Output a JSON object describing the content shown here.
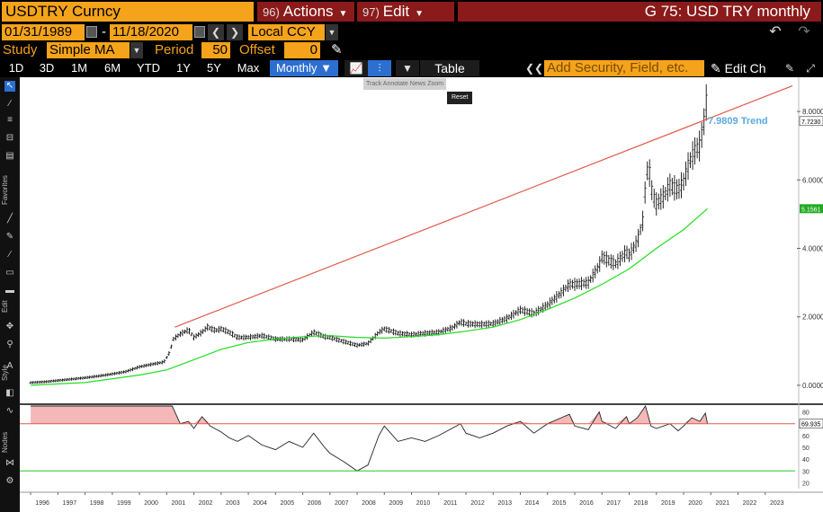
{
  "header": {
    "ticker": "USDTRY Curncy",
    "actions": {
      "num": "96)",
      "label": "Actions"
    },
    "edit": {
      "num": "97)",
      "label": "Edit"
    },
    "title": "G 75: USD TRY monthly"
  },
  "range": {
    "start": "01/31/1989",
    "separator": "-",
    "end": "11/18/2020",
    "currency": "Local CCY"
  },
  "study": {
    "label": "Study",
    "value": "Simple MA",
    "period_label": "Period",
    "period": "50",
    "offset_label": "Offset",
    "offset": "0"
  },
  "timeframes": [
    "1D",
    "3D",
    "1M",
    "6M",
    "YTD",
    "1Y",
    "5Y",
    "Max"
  ],
  "frequency": "Monthly",
  "table_label": "Table",
  "add_security_placeholder": "Add Security, Field, etc.",
  "edit_chart_label": "Edit Ch",
  "mini_toolbar": "Track  Annotate  News  Zoom",
  "reset_label": "Reset",
  "sidebar_labels": {
    "favorites": "Favorites",
    "edit": "Edit",
    "style": "Style",
    "nodes": "Nodes"
  },
  "colors": {
    "orange": "#f5a31a",
    "red_menu": "#8b1a1a",
    "trend": "#e05a4a",
    "ma": "#22dd22",
    "rsi_fill": "#f4b8b8",
    "trend_label": "#5aa9e6",
    "price_tag": "#22aa22"
  },
  "chart_data": {
    "type": "bar",
    "annotations": {
      "trend_label": "7.9809 Trend",
      "last_price": "7.7230",
      "ma_last": "5.1561",
      "rsi_last": "69.935"
    },
    "y_ticks": [
      "8.0000",
      "6.0000",
      "4.0000",
      "2.0000",
      "0.0000"
    ],
    "rsi_ticks": [
      "80",
      "70",
      "60",
      "50",
      "40",
      "30",
      "20"
    ],
    "x_ticks": [
      "1996",
      "1997",
      "1998",
      "1999",
      "2000",
      "2001",
      "2002",
      "2003",
      "2004",
      "2005",
      "2006",
      "2007",
      "2008",
      "2009",
      "2010",
      "2011",
      "2012",
      "2013",
      "2014",
      "2015",
      "2016",
      "2017",
      "2018",
      "2019",
      "2020",
      "2021",
      "2022",
      "2023"
    ],
    "ylim": [
      -0.5,
      9.0
    ],
    "rsi_ylim": [
      15,
      85
    ],
    "xlim": [
      1995.6,
      2024.1
    ],
    "price": [
      [
        1996.0,
        0.08
      ],
      [
        1996.5,
        0.1
      ],
      [
        1997.0,
        0.14
      ],
      [
        1997.5,
        0.18
      ],
      [
        1998.0,
        0.22
      ],
      [
        1998.5,
        0.27
      ],
      [
        1999.0,
        0.33
      ],
      [
        1999.5,
        0.4
      ],
      [
        2000.0,
        0.54
      ],
      [
        2000.5,
        0.62
      ],
      [
        2000.9,
        0.68
      ],
      [
        2001.1,
        0.95
      ],
      [
        2001.25,
        1.35
      ],
      [
        2001.5,
        1.5
      ],
      [
        2001.8,
        1.62
      ],
      [
        2002.0,
        1.4
      ],
      [
        2002.3,
        1.55
      ],
      [
        2002.5,
        1.7
      ],
      [
        2002.8,
        1.6
      ],
      [
        2003.0,
        1.65
      ],
      [
        2003.3,
        1.55
      ],
      [
        2003.6,
        1.4
      ],
      [
        2004.0,
        1.4
      ],
      [
        2004.5,
        1.45
      ],
      [
        2005.0,
        1.35
      ],
      [
        2005.5,
        1.35
      ],
      [
        2006.0,
        1.33
      ],
      [
        2006.4,
        1.55
      ],
      [
        2006.8,
        1.42
      ],
      [
        2007.0,
        1.4
      ],
      [
        2007.5,
        1.28
      ],
      [
        2008.0,
        1.17
      ],
      [
        2008.4,
        1.22
      ],
      [
        2008.8,
        1.55
      ],
      [
        2009.0,
        1.65
      ],
      [
        2009.5,
        1.52
      ],
      [
        2010.0,
        1.48
      ],
      [
        2010.5,
        1.52
      ],
      [
        2011.0,
        1.55
      ],
      [
        2011.5,
        1.68
      ],
      [
        2011.8,
        1.85
      ],
      [
        2012.0,
        1.8
      ],
      [
        2012.5,
        1.78
      ],
      [
        2013.0,
        1.8
      ],
      [
        2013.5,
        1.95
      ],
      [
        2014.0,
        2.2
      ],
      [
        2014.5,
        2.1
      ],
      [
        2015.0,
        2.35
      ],
      [
        2015.5,
        2.7
      ],
      [
        2015.8,
        2.95
      ],
      [
        2016.0,
        2.95
      ],
      [
        2016.5,
        3.0
      ],
      [
        2016.9,
        3.5
      ],
      [
        2017.0,
        3.75
      ],
      [
        2017.5,
        3.55
      ],
      [
        2017.9,
        3.9
      ],
      [
        2018.0,
        3.8
      ],
      [
        2018.3,
        4.2
      ],
      [
        2018.5,
        4.8
      ],
      [
        2018.6,
        5.8
      ],
      [
        2018.7,
        6.5
      ],
      [
        2018.85,
        5.6
      ],
      [
        2019.0,
        5.3
      ],
      [
        2019.3,
        5.55
      ],
      [
        2019.5,
        5.85
      ],
      [
        2019.8,
        5.7
      ],
      [
        2020.0,
        5.95
      ],
      [
        2020.2,
        6.5
      ],
      [
        2020.45,
        6.9
      ],
      [
        2020.6,
        7.0
      ],
      [
        2020.75,
        7.7
      ],
      [
        2020.83,
        8.3
      ],
      [
        2020.88,
        7.72
      ]
    ],
    "moving_average": [
      [
        1996.0,
        0.0
      ],
      [
        1998.0,
        0.08
      ],
      [
        2000.0,
        0.3
      ],
      [
        2001.0,
        0.45
      ],
      [
        2002.0,
        0.75
      ],
      [
        2003.0,
        1.05
      ],
      [
        2004.0,
        1.25
      ],
      [
        2005.0,
        1.35
      ],
      [
        2006.0,
        1.42
      ],
      [
        2007.0,
        1.45
      ],
      [
        2008.0,
        1.4
      ],
      [
        2009.0,
        1.38
      ],
      [
        2010.0,
        1.42
      ],
      [
        2011.0,
        1.48
      ],
      [
        2012.0,
        1.58
      ],
      [
        2013.0,
        1.7
      ],
      [
        2014.0,
        1.92
      ],
      [
        2015.0,
        2.22
      ],
      [
        2016.0,
        2.55
      ],
      [
        2017.0,
        2.95
      ],
      [
        2018.0,
        3.4
      ],
      [
        2019.0,
        4.0
      ],
      [
        2020.0,
        4.55
      ],
      [
        2020.88,
        5.16
      ]
    ],
    "trend_line": [
      [
        2001.3,
        1.7
      ],
      [
        2024.0,
        8.75
      ]
    ],
    "rsi": [
      [
        1996.0,
        99.0
      ],
      [
        2000.5,
        99.0
      ],
      [
        2000.7,
        97.0
      ],
      [
        2000.9,
        99.0
      ],
      [
        2001.2,
        92.0
      ],
      [
        2001.5,
        70.0
      ],
      [
        2001.8,
        72.0
      ],
      [
        2002.0,
        66.0
      ],
      [
        2002.3,
        76.0
      ],
      [
        2002.6,
        68.0
      ],
      [
        2003.0,
        63.0
      ],
      [
        2003.3,
        58.0
      ],
      [
        2003.6,
        55.0
      ],
      [
        2004.0,
        60.0
      ],
      [
        2004.5,
        52.0
      ],
      [
        2005.0,
        48.0
      ],
      [
        2005.5,
        55.0
      ],
      [
        2006.0,
        50.0
      ],
      [
        2006.4,
        62.0
      ],
      [
        2006.8,
        50.0
      ],
      [
        2007.0,
        45.0
      ],
      [
        2007.5,
        38.0
      ],
      [
        2008.0,
        30.0
      ],
      [
        2008.4,
        35.0
      ],
      [
        2008.8,
        60.0
      ],
      [
        2009.0,
        68.0
      ],
      [
        2009.5,
        55.0
      ],
      [
        2010.0,
        58.0
      ],
      [
        2010.5,
        55.0
      ],
      [
        2011.0,
        60.0
      ],
      [
        2011.8,
        70.0
      ],
      [
        2012.0,
        62.0
      ],
      [
        2012.5,
        58.0
      ],
      [
        2013.0,
        62.0
      ],
      [
        2013.5,
        68.0
      ],
      [
        2014.0,
        72.0
      ],
      [
        2014.5,
        62.0
      ],
      [
        2015.0,
        70.0
      ],
      [
        2015.5,
        75.0
      ],
      [
        2015.8,
        78.0
      ],
      [
        2016.0,
        68.0
      ],
      [
        2016.5,
        65.0
      ],
      [
        2016.9,
        80.0
      ],
      [
        2017.0,
        72.0
      ],
      [
        2017.5,
        66.0
      ],
      [
        2017.9,
        76.0
      ],
      [
        2018.0,
        70.0
      ],
      [
        2018.3,
        75.0
      ],
      [
        2018.6,
        86.0
      ],
      [
        2018.8,
        68.0
      ],
      [
        2019.0,
        66.0
      ],
      [
        2019.5,
        70.0
      ],
      [
        2019.8,
        64.0
      ],
      [
        2020.0,
        68.0
      ],
      [
        2020.3,
        75.0
      ],
      [
        2020.6,
        72.0
      ],
      [
        2020.8,
        79.0
      ],
      [
        2020.88,
        69.9
      ]
    ]
  }
}
